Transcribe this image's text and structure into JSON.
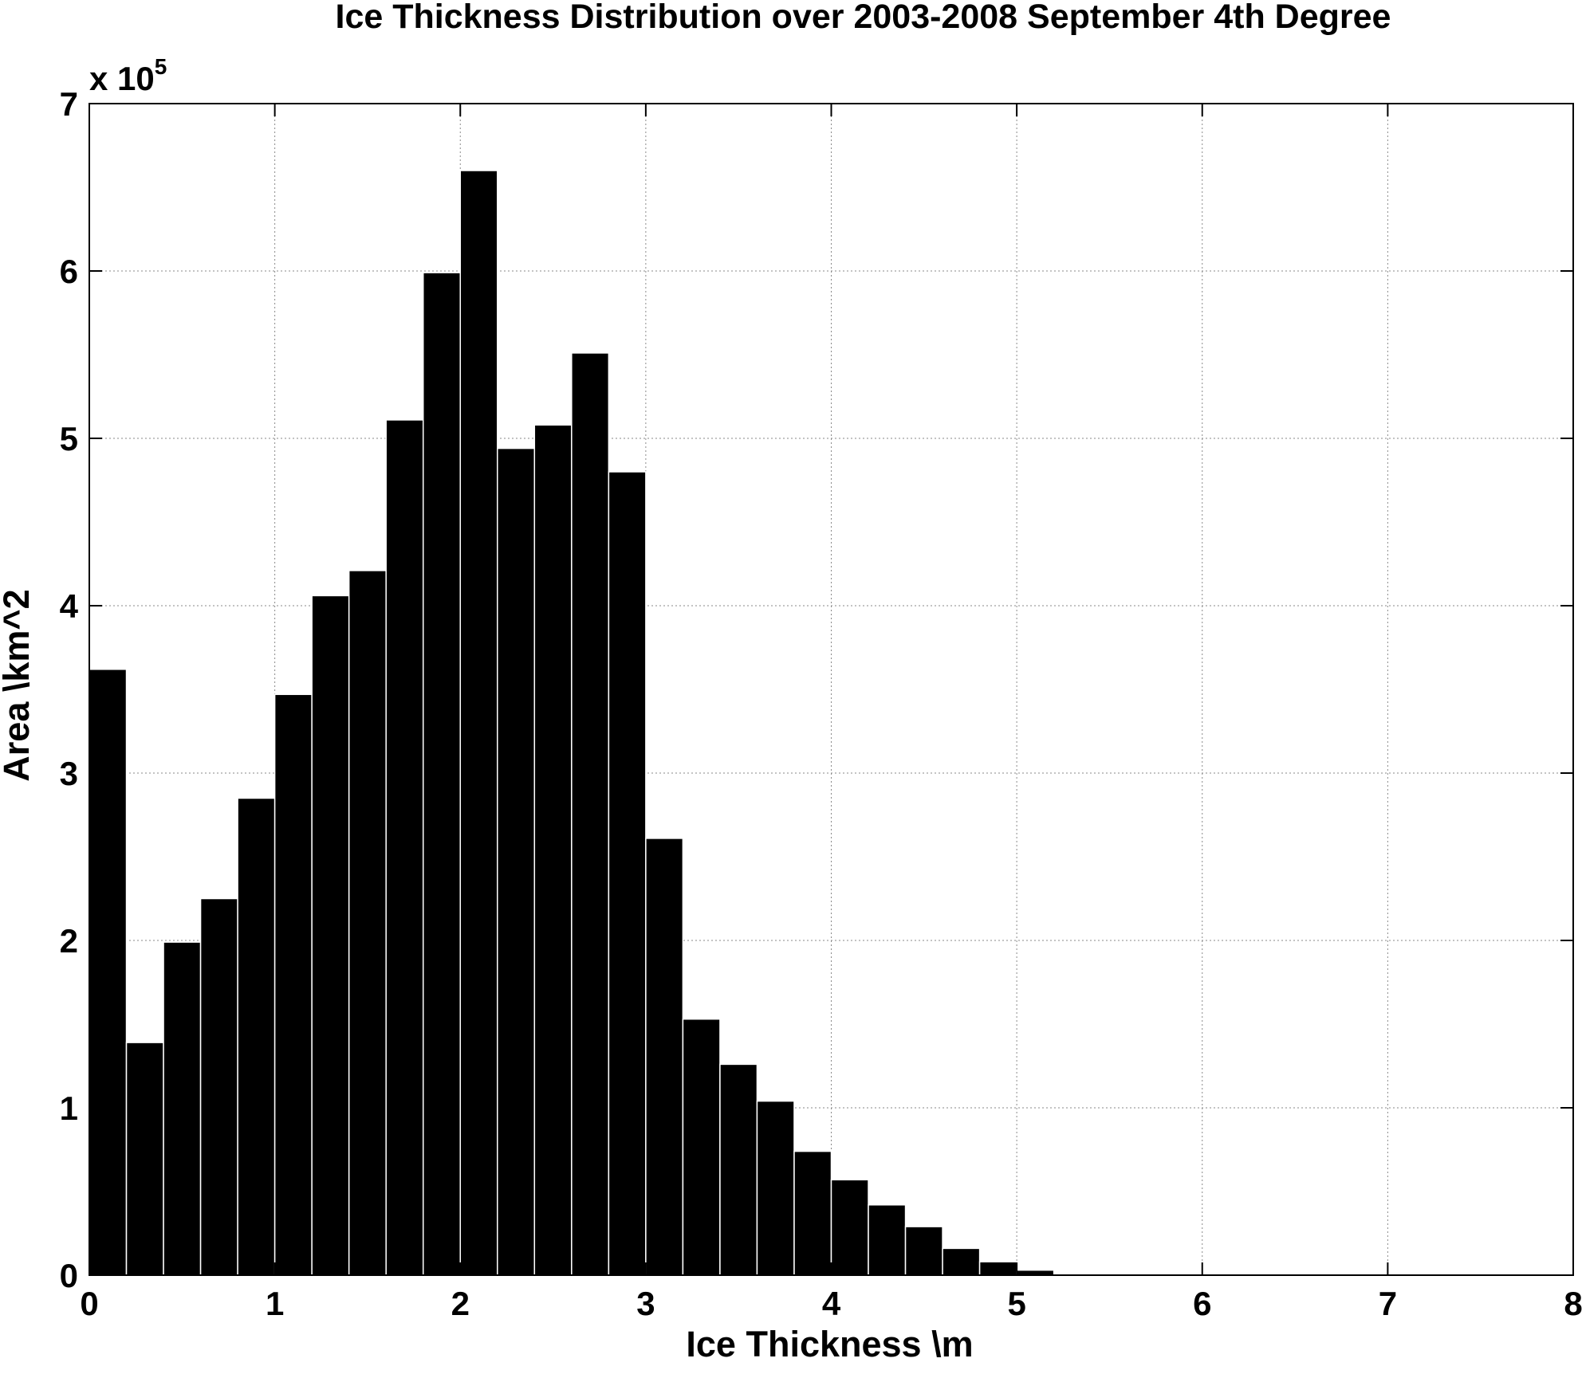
{
  "chart_data": {
    "type": "bar",
    "title": "Ice Thickness Distribution over 2003-2008 September 4th Degree",
    "xlabel": "Ice Thickness \\m",
    "ylabel": "Area \\km^2",
    "y_multiplier": {
      "base": "x 10",
      "exponent": "5"
    },
    "xlim": [
      0,
      8
    ],
    "ylim": [
      0,
      700000
    ],
    "xticks": [
      "0",
      "1",
      "2",
      "3",
      "4",
      "5",
      "6",
      "7",
      "8"
    ],
    "yticks": [
      "0",
      "1",
      "2",
      "3",
      "4",
      "5",
      "6",
      "7"
    ],
    "grid": true,
    "bin_edges": [
      0,
      0.2,
      0.4,
      0.6,
      0.8,
      1.0,
      1.2,
      1.4,
      1.6,
      1.8,
      2.0,
      2.2,
      2.4,
      2.6,
      2.8,
      3.0,
      3.2,
      3.4,
      3.6,
      3.8,
      4.0,
      4.2,
      4.4,
      4.6,
      4.8,
      5.0,
      5.2
    ],
    "values": [
      362000,
      139000,
      199000,
      225000,
      285000,
      347000,
      406000,
      421000,
      511000,
      599000,
      660000,
      494000,
      508000,
      551000,
      480000,
      261000,
      153000,
      126000,
      104000,
      74000,
      57000,
      42000,
      29000,
      16000,
      8000,
      3000
    ],
    "color": "#000000"
  }
}
